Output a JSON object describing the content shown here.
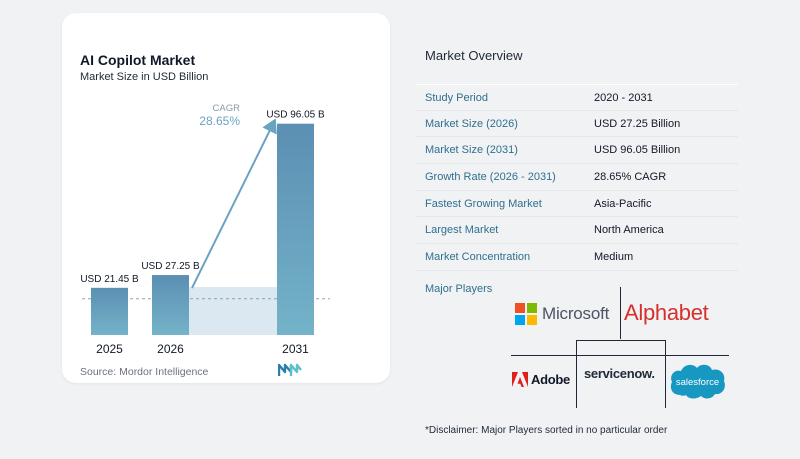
{
  "chart_data": {
    "type": "bar",
    "title": "AI Copilot Market",
    "subtitle": "Market Size in USD Billion",
    "categories": [
      "2025",
      "2026",
      "2031"
    ],
    "values": [
      21.45,
      27.25,
      96.05
    ],
    "value_labels": [
      "USD 21.45 B",
      "USD 27.25 B",
      "USD 96.05 B"
    ],
    "ylim": [
      0,
      100
    ],
    "grid": false,
    "annotation": {
      "label": "CAGR",
      "value": "28.65%"
    },
    "colors": {
      "bar": "#6aa3c2",
      "bar_dark": "#5a8fb0",
      "area": "#dbe8f1",
      "arrow": "#6aa3c2",
      "baseline": "#8aa5b5"
    }
  },
  "source": "Source:  Mordor Intelligence",
  "overview": {
    "title": "Market Overview",
    "rows": [
      {
        "key": "Study Period",
        "value": "2020 - 2031"
      },
      {
        "key": "Market Size (2026)",
        "value": "USD 27.25 Billion"
      },
      {
        "key": "Market Size (2031)",
        "value": "USD 96.05 Billion"
      },
      {
        "key": "Growth Rate (2026 - 2031)",
        "value": "28.65% CAGR"
      },
      {
        "key": "Fastest Growing Market",
        "value": "Asia-Pacific"
      },
      {
        "key": "Largest Market",
        "value": "North America"
      },
      {
        "key": "Market Concentration",
        "value": "Medium"
      }
    ]
  },
  "players": {
    "title": "Major Players",
    "microsoft": "Microsoft",
    "alphabet": "Alphabet",
    "adobe": "Adobe",
    "servicenow": "servicenow.",
    "salesforce": "salesforce",
    "colors": {
      "ms_red": "#f25022",
      "ms_green": "#7fba00",
      "ms_blue": "#00a4ef",
      "ms_yellow": "#ffb900",
      "alphabet": "#d6302c",
      "adobe": "#e0201b",
      "salesforce": "#1798c1"
    }
  },
  "disclaimer": "*Disclaimer: Major Players sorted in no particular order"
}
